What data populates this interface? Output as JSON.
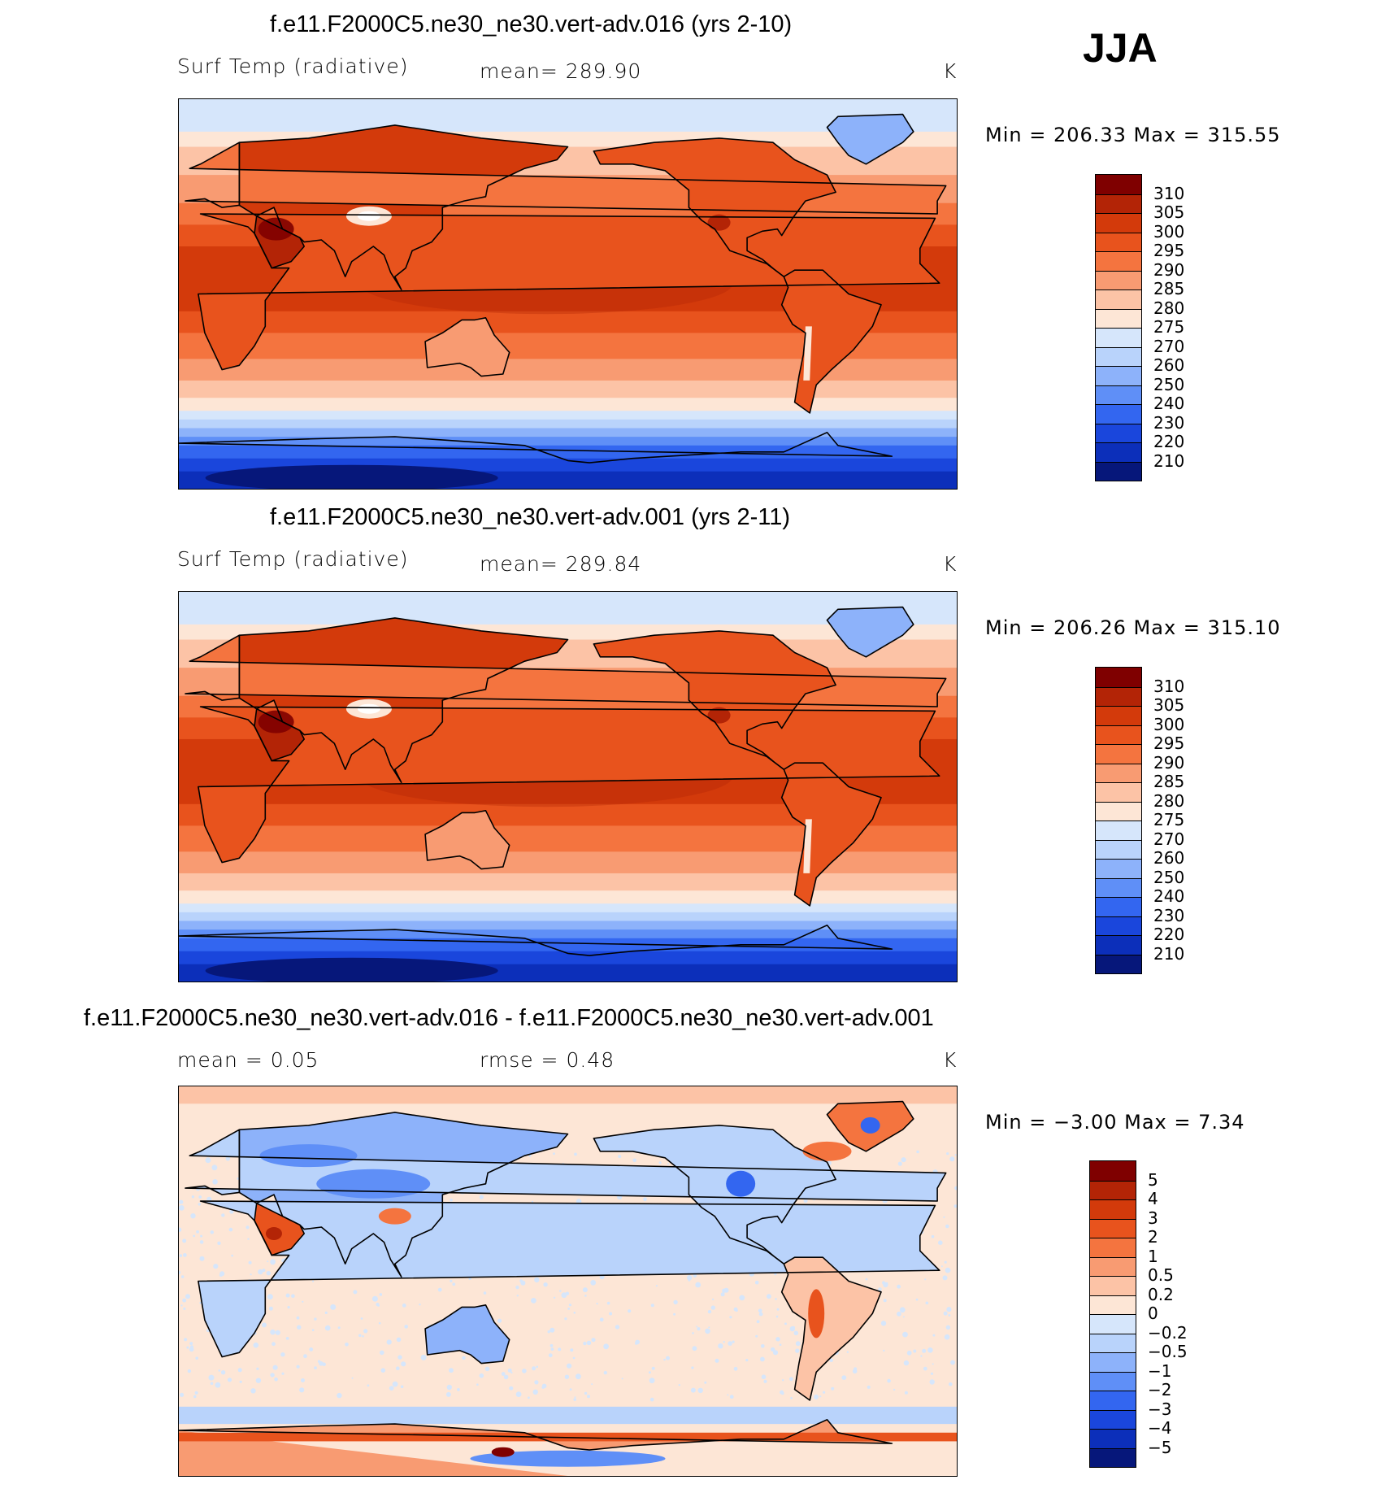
{
  "season": "JJA",
  "panels": [
    {
      "title": "f.e11.F2000C5.ne30_ne30.vert-adv.016 (yrs 2-10)",
      "left_label": "Surf Temp (radiative)",
      "center_label": "mean=  289.90",
      "units": "K",
      "minmax": "Min  =  206.33  Max  =  315.55",
      "field": "abs1"
    },
    {
      "title": "f.e11.F2000C5.ne30_ne30.vert-adv.001 (yrs 2-11)",
      "left_label": "Surf Temp (radiative)",
      "center_label": "mean=  289.84",
      "units": "K",
      "minmax": "Min  =  206.26  Max  =  315.10",
      "field": "abs2"
    },
    {
      "title": "f.e11.F2000C5.ne30_ne30.vert-adv.016 - f.e11.F2000C5.ne30_ne30.vert-adv.001",
      "left_label": "mean  =     0.05",
      "center_label": "rmse  =     0.48",
      "units": "K",
      "minmax": "Min  =    −3.00  Max  =      7.34",
      "field": "diff"
    }
  ],
  "colorbar_abs": {
    "labels": [
      "310",
      "305",
      "300",
      "295",
      "290",
      "285",
      "280",
      "275",
      "270",
      "260",
      "250",
      "240",
      "230",
      "220",
      "210"
    ],
    "colors": [
      "#7f0000",
      "#b32406",
      "#d33a0b",
      "#e8531d",
      "#f4743f",
      "#f89b72",
      "#fcc3a6",
      "#fde6d6",
      "#d6e6fb",
      "#b9d3fb",
      "#8db2fa",
      "#5f8ff7",
      "#3366f0",
      "#1a46dc",
      "#0c2fba",
      "#06177a"
    ]
  },
  "colorbar_diff": {
    "labels": [
      "5",
      "4",
      "3",
      "2",
      "1",
      "0.5",
      "0.2",
      "0",
      "−0.2",
      "−0.5",
      "−1",
      "−2",
      "−3",
      "−4",
      "−5"
    ],
    "colors": [
      "#7f0000",
      "#b32406",
      "#d33a0b",
      "#e8531d",
      "#f4743f",
      "#f89b72",
      "#fcc3a6",
      "#fde6d6",
      "#d6e6fb",
      "#b9d3fb",
      "#8db2fa",
      "#5f8ff7",
      "#3366f0",
      "#1a46dc",
      "#0c2fba",
      "#06177a"
    ]
  },
  "chart_data": [
    {
      "type": "heatmap",
      "title": "f.e11.F2000C5.ne30_ne30.vert-adv.016 (yrs 2-10)",
      "variable": "Surf Temp (radiative)",
      "units": "K",
      "mean": 289.9,
      "min": 206.33,
      "max": 315.55,
      "projection": "cylindrical equidistant, centered on 180",
      "levels": [
        210,
        220,
        230,
        240,
        250,
        260,
        270,
        275,
        280,
        285,
        290,
        295,
        300,
        305,
        310
      ]
    },
    {
      "type": "heatmap",
      "title": "f.e11.F2000C5.ne30_ne30.vert-adv.001 (yrs 2-11)",
      "variable": "Surf Temp (radiative)",
      "units": "K",
      "mean": 289.84,
      "min": 206.26,
      "max": 315.1,
      "projection": "cylindrical equidistant, centered on 180",
      "levels": [
        210,
        220,
        230,
        240,
        250,
        260,
        270,
        275,
        280,
        285,
        290,
        295,
        300,
        305,
        310
      ]
    },
    {
      "type": "heatmap",
      "title": "f.e11.F2000C5.ne30_ne30.vert-adv.016 - f.e11.F2000C5.ne30_ne30.vert-adv.001",
      "units": "K",
      "mean": 0.05,
      "rmse": 0.48,
      "min": -3.0,
      "max": 7.34,
      "projection": "cylindrical equidistant, centered on 180",
      "levels": [
        -5,
        -4,
        -3,
        -2,
        -1,
        -0.5,
        -0.2,
        0,
        0.2,
        0.5,
        1,
        2,
        3,
        4,
        5
      ]
    }
  ]
}
